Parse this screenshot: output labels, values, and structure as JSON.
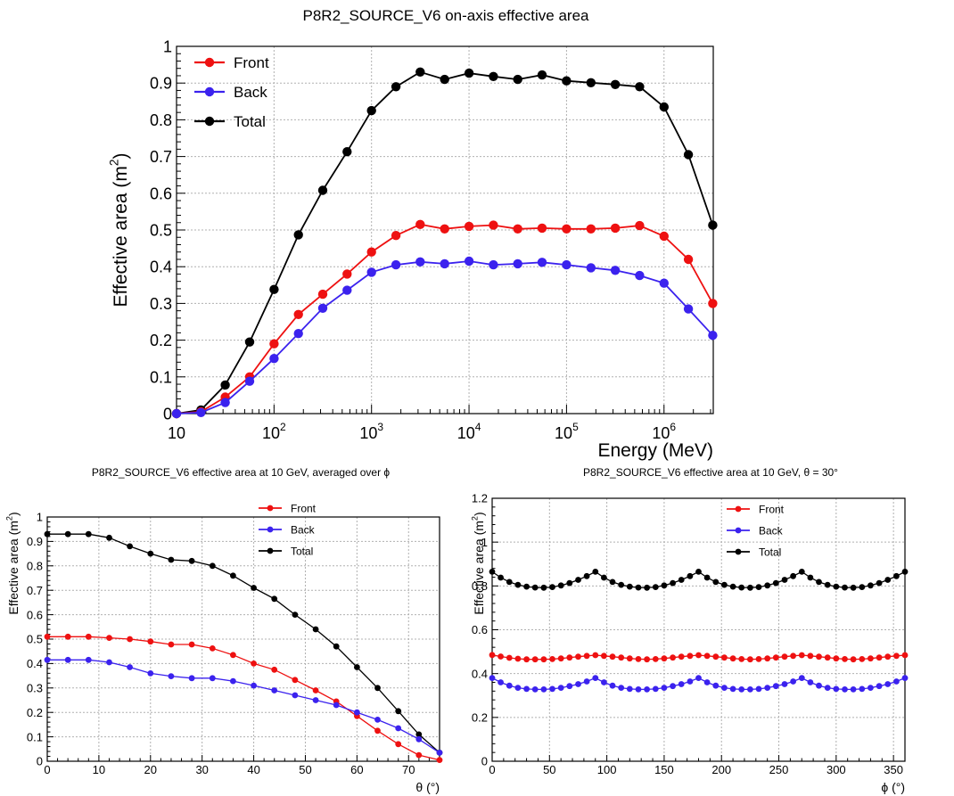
{
  "colors": {
    "front": "#ee1111",
    "back": "#3b22ee",
    "total": "#000000",
    "grid": "#b0b0b0"
  },
  "chart_data": [
    {
      "id": "energy",
      "type": "line",
      "title": "P8R2_SOURCE_V6 on-axis effective area",
      "xlabel": "Energy (MeV)",
      "ylabel": "Effective area (m",
      "ylabel_sup": "2",
      "ylabel_end": ")",
      "xscale": "log",
      "xlim": [
        10,
        3200000
      ],
      "ylim": [
        0,
        1
      ],
      "grid": true,
      "legend_position": "top-left",
      "x_ticks": [
        {
          "value": 10,
          "base": "10",
          "exp": ""
        },
        {
          "value": 100,
          "base": "10",
          "exp": "2"
        },
        {
          "value": 1000,
          "base": "10",
          "exp": "3"
        },
        {
          "value": 10000,
          "base": "10",
          "exp": "4"
        },
        {
          "value": 100000,
          "base": "10",
          "exp": "5"
        },
        {
          "value": 1000000,
          "base": "10",
          "exp": "6"
        }
      ],
      "y_ticks": [
        {
          "value": 0,
          "label": "0"
        },
        {
          "value": 0.1,
          "label": "0.1"
        },
        {
          "value": 0.2,
          "label": "0.2"
        },
        {
          "value": 0.3,
          "label": "0.3"
        },
        {
          "value": 0.4,
          "label": "0.4"
        },
        {
          "value": 0.5,
          "label": "0.5"
        },
        {
          "value": 0.6,
          "label": "0.6"
        },
        {
          "value": 0.7,
          "label": "0.7"
        },
        {
          "value": 0.8,
          "label": "0.8"
        },
        {
          "value": 0.9,
          "label": "0.9"
        },
        {
          "value": 1,
          "label": "1"
        }
      ],
      "x": [
        10,
        17.8,
        31.6,
        56.2,
        100,
        178,
        316,
        562,
        1000,
        1780,
        3160,
        5620,
        10000,
        17800,
        31600,
        56200,
        100000,
        178000,
        316000,
        562000,
        1000000,
        1780000,
        3160000
      ],
      "series": [
        {
          "name": "Front",
          "color_key": "front",
          "values": [
            0.0,
            0.005,
            0.045,
            0.1,
            0.19,
            0.27,
            0.325,
            0.38,
            0.44,
            0.485,
            0.515,
            0.503,
            0.51,
            0.513,
            0.503,
            0.505,
            0.503,
            0.503,
            0.505,
            0.512,
            0.483,
            0.42,
            0.3
          ]
        },
        {
          "name": "Back",
          "color_key": "back",
          "values": [
            0.0,
            0.003,
            0.03,
            0.088,
            0.15,
            0.218,
            0.287,
            0.336,
            0.385,
            0.405,
            0.413,
            0.408,
            0.415,
            0.405,
            0.408,
            0.412,
            0.405,
            0.397,
            0.39,
            0.376,
            0.355,
            0.285,
            0.213
          ]
        },
        {
          "name": "Total",
          "color_key": "total",
          "values": [
            0.0,
            0.01,
            0.078,
            0.195,
            0.338,
            0.487,
            0.608,
            0.713,
            0.825,
            0.89,
            0.93,
            0.91,
            0.927,
            0.918,
            0.91,
            0.922,
            0.906,
            0.901,
            0.896,
            0.89,
            0.835,
            0.705,
            0.513
          ]
        }
      ]
    },
    {
      "id": "theta",
      "type": "line",
      "title": "P8R2_SOURCE_V6 effective area at 10 GeV, averaged over ϕ",
      "xlabel": "θ (°)",
      "ylabel": "Effective area (m",
      "ylabel_sup": "2",
      "ylabel_end": ")",
      "xlim": [
        0,
        76
      ],
      "ylim": [
        0,
        1
      ],
      "grid": true,
      "legend_position": "top-right",
      "x_ticks": [
        {
          "value": 0,
          "label": "0"
        },
        {
          "value": 10,
          "label": "10"
        },
        {
          "value": 20,
          "label": "20"
        },
        {
          "value": 30,
          "label": "30"
        },
        {
          "value": 40,
          "label": "40"
        },
        {
          "value": 50,
          "label": "50"
        },
        {
          "value": 60,
          "label": "60"
        },
        {
          "value": 70,
          "label": "70"
        }
      ],
      "y_ticks": [
        {
          "value": 0,
          "label": "0"
        },
        {
          "value": 0.1,
          "label": "0.1"
        },
        {
          "value": 0.2,
          "label": "0.2"
        },
        {
          "value": 0.3,
          "label": "0.3"
        },
        {
          "value": 0.4,
          "label": "0.4"
        },
        {
          "value": 0.5,
          "label": "0.5"
        },
        {
          "value": 0.6,
          "label": "0.6"
        },
        {
          "value": 0.7,
          "label": "0.7"
        },
        {
          "value": 0.8,
          "label": "0.8"
        },
        {
          "value": 0.9,
          "label": "0.9"
        },
        {
          "value": 1,
          "label": "1"
        }
      ],
      "x": [
        0,
        4,
        8,
        12,
        16,
        20,
        24,
        28,
        32,
        36,
        40,
        44,
        48,
        52,
        56,
        60,
        64,
        68,
        72,
        76
      ],
      "series": [
        {
          "name": "Front",
          "color_key": "front",
          "values": [
            0.51,
            0.51,
            0.51,
            0.505,
            0.5,
            0.49,
            0.478,
            0.478,
            0.462,
            0.435,
            0.4,
            0.375,
            0.333,
            0.29,
            0.245,
            0.185,
            0.125,
            0.07,
            0.025,
            0.005
          ]
        },
        {
          "name": "Back",
          "color_key": "back",
          "values": [
            0.415,
            0.415,
            0.415,
            0.405,
            0.385,
            0.36,
            0.348,
            0.34,
            0.34,
            0.328,
            0.31,
            0.29,
            0.27,
            0.25,
            0.23,
            0.2,
            0.17,
            0.135,
            0.09,
            0.035
          ]
        },
        {
          "name": "Total",
          "color_key": "total",
          "values": [
            0.93,
            0.93,
            0.93,
            0.915,
            0.88,
            0.85,
            0.825,
            0.82,
            0.8,
            0.76,
            0.71,
            0.665,
            0.6,
            0.54,
            0.47,
            0.385,
            0.3,
            0.205,
            0.11,
            0.035
          ]
        }
      ]
    },
    {
      "id": "phi",
      "type": "line",
      "title": "P8R2_SOURCE_V6 effective area at 10 GeV, θ = 30°",
      "xlabel": "ϕ (°)",
      "ylabel": "Effective area (m",
      "ylabel_sup": "2",
      "ylabel_end": ")",
      "xlim": [
        0,
        360
      ],
      "ylim": [
        0,
        1.2
      ],
      "grid": true,
      "legend_position": "top-center",
      "x_ticks": [
        {
          "value": 0,
          "label": "0"
        },
        {
          "value": 50,
          "label": "50"
        },
        {
          "value": 100,
          "label": "100"
        },
        {
          "value": 150,
          "label": "150"
        },
        {
          "value": 200,
          "label": "200"
        },
        {
          "value": 250,
          "label": "250"
        },
        {
          "value": 300,
          "label": "300"
        },
        {
          "value": 350,
          "label": "350"
        }
      ],
      "y_ticks": [
        {
          "value": 0,
          "label": "0"
        },
        {
          "value": 0.2,
          "label": "0.2"
        },
        {
          "value": 0.4,
          "label": "0.4"
        },
        {
          "value": 0.6,
          "label": "0.6"
        },
        {
          "value": 0.8,
          "label": "0.8"
        },
        {
          "value": 1,
          "label": "1"
        },
        {
          "value": 1.2,
          "label": "1.2"
        }
      ],
      "x": [
        0,
        7.5,
        15,
        22.5,
        30,
        37.5,
        45,
        52.5,
        60,
        67.5,
        75,
        82.5,
        90,
        97.5,
        105,
        112.5,
        120,
        127.5,
        135,
        142.5,
        150,
        157.5,
        165,
        172.5,
        180,
        187.5,
        195,
        202.5,
        210,
        217.5,
        225,
        232.5,
        240,
        247.5,
        255,
        262.5,
        270,
        277.5,
        285,
        292.5,
        300,
        307.5,
        315,
        322.5,
        330,
        337.5,
        345,
        352.5,
        360
      ],
      "series": [
        {
          "name": "Front",
          "color_key": "front",
          "values": [
            0.485,
            0.478,
            0.472,
            0.468,
            0.465,
            0.465,
            0.465,
            0.466,
            0.469,
            0.473,
            0.477,
            0.481,
            0.484,
            0.481,
            0.477,
            0.473,
            0.469,
            0.466,
            0.465,
            0.466,
            0.469,
            0.473,
            0.477,
            0.481,
            0.484,
            0.481,
            0.477,
            0.473,
            0.469,
            0.466,
            0.465,
            0.466,
            0.469,
            0.473,
            0.477,
            0.481,
            0.484,
            0.481,
            0.477,
            0.473,
            0.469,
            0.466,
            0.465,
            0.466,
            0.469,
            0.473,
            0.477,
            0.481,
            0.484
          ]
        },
        {
          "name": "Back",
          "color_key": "back",
          "values": [
            0.38,
            0.36,
            0.345,
            0.335,
            0.33,
            0.328,
            0.328,
            0.33,
            0.335,
            0.343,
            0.352,
            0.364,
            0.38,
            0.36,
            0.345,
            0.335,
            0.33,
            0.328,
            0.328,
            0.33,
            0.335,
            0.343,
            0.352,
            0.364,
            0.38,
            0.36,
            0.345,
            0.335,
            0.33,
            0.328,
            0.328,
            0.33,
            0.335,
            0.343,
            0.352,
            0.364,
            0.38,
            0.36,
            0.345,
            0.335,
            0.33,
            0.328,
            0.328,
            0.33,
            0.335,
            0.343,
            0.352,
            0.364,
            0.38
          ]
        },
        {
          "name": "Total",
          "color_key": "total",
          "values": [
            0.865,
            0.838,
            0.818,
            0.805,
            0.797,
            0.793,
            0.792,
            0.795,
            0.802,
            0.813,
            0.828,
            0.845,
            0.865,
            0.838,
            0.818,
            0.805,
            0.797,
            0.793,
            0.792,
            0.795,
            0.802,
            0.813,
            0.828,
            0.845,
            0.865,
            0.838,
            0.818,
            0.805,
            0.797,
            0.793,
            0.792,
            0.795,
            0.802,
            0.813,
            0.828,
            0.845,
            0.865,
            0.838,
            0.818,
            0.805,
            0.797,
            0.793,
            0.792,
            0.795,
            0.802,
            0.813,
            0.828,
            0.845,
            0.865
          ]
        }
      ]
    }
  ]
}
